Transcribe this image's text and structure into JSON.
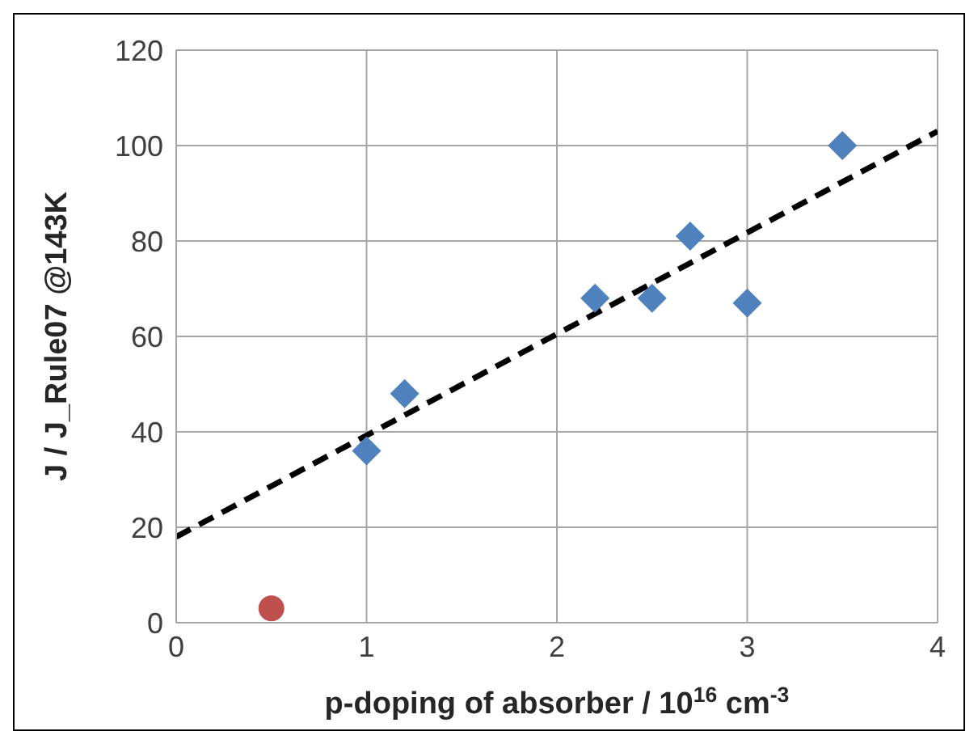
{
  "chart_data": {
    "type": "scatter",
    "xlabel": "p-doping of absorber / 10$^{16}$ cm$^{-3}$",
    "ylabel": "J / J_Rule07 @143K",
    "xlim": [
      0,
      4
    ],
    "xticks": [
      0,
      1,
      2,
      3,
      4
    ],
    "ylim": [
      0,
      120
    ],
    "yticks": [
      0,
      20,
      40,
      60,
      80,
      100,
      120
    ],
    "grid": true,
    "series": [
      {
        "color": "#4f81bd",
        "marker": "diamond",
        "x": [
          1,
          1.2,
          2.2,
          2.5,
          2.7,
          3,
          3.5
        ],
        "values": [
          36,
          48,
          68,
          68,
          81,
          67,
          100
        ]
      },
      {
        "color": "#c0504d",
        "marker": "circle",
        "x": [
          0.5
        ],
        "values": [
          3
        ]
      },
      {
        "type": "line",
        "color": "#000000",
        "line_style": "dashed",
        "marker": "none",
        "x": [
          0,
          4
        ],
        "values": [
          18,
          103
        ]
      }
    ]
  }
}
